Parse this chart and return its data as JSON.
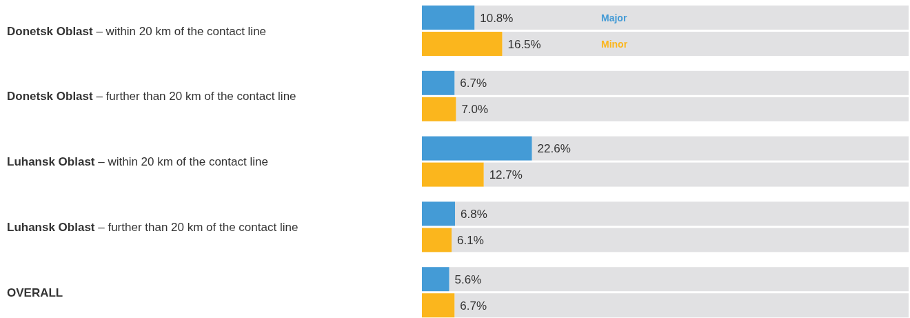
{
  "chart_data": {
    "type": "bar",
    "orientation": "horizontal",
    "categories": [
      "Donetsk Oblast – within 20 km of the contact line",
      "Donetsk Oblast – further than 20 km of the contact line",
      "Luhansk Oblast – within 20 km of the contact line",
      "Luhansk Oblast – further than 20 km of the contact line",
      "OVERALL"
    ],
    "series": [
      {
        "name": "Major",
        "color": "#449bd6",
        "values": [
          10.8,
          6.7,
          22.6,
          6.8,
          5.6
        ],
        "value_labels": [
          "10.8%",
          "6.7%",
          "22.6%",
          "6.8%",
          "5.6%"
        ]
      },
      {
        "name": "Minor",
        "color": "#fbb61d",
        "values": [
          16.5,
          7.0,
          12.7,
          6.1,
          6.7
        ],
        "value_labels": [
          "16.5%",
          "7.0%",
          "12.7%",
          "6.1%",
          "6.7%"
        ]
      }
    ],
    "xlim": [
      0,
      100
    ],
    "tick_labels": "y",
    "legend": "top"
  }
}
